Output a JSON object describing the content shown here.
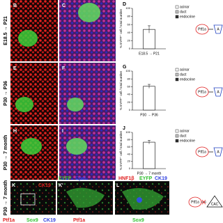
{
  "row_labels": [
    "E18.5 → P21",
    "P30 → P36",
    "P30 → 7 month",
    "P30 → 7 month"
  ],
  "panel_letters": [
    "B",
    "C",
    "E",
    "F",
    "H",
    "I",
    "K",
    "K'",
    "L"
  ],
  "stains_k": [
    "CK19",
    "EYFP",
    "Cpal"
  ],
  "stains_l": [
    "HNF1β",
    "EYFP",
    "CK19"
  ],
  "bottom_labels": [
    "Ptf1a",
    "Sox9",
    "CK19",
    "Ptf1a",
    "Sox9"
  ],
  "schematics": [
    {
      "from": "Ptf1a",
      "to": "A"
    },
    {
      "from": "Ptf1a",
      "to": "A"
    },
    {
      "from": "Ptf1a",
      "to": "A"
    },
    {
      "from": "Ptf1a",
      "to": "CAC"
    }
  ],
  "chart_data": [
    {
      "type": "bar",
      "panel": "D",
      "y_label": "% EYFP⁺ cell / total number",
      "categories": [
        "E18.5 → P21"
      ],
      "ylim": [
        0,
        100
      ],
      "yticks": [
        0,
        20,
        40,
        60,
        80,
        100
      ],
      "series": [
        {
          "name": "acinar",
          "color": "#ffffff",
          "values": [
            48
          ],
          "errors": [
            9
          ]
        },
        {
          "name": "duct",
          "color": "#c8c8c8",
          "values": [
            null
          ]
        },
        {
          "name": "endocrine",
          "color": "#333333",
          "values": [
            null
          ]
        }
      ]
    },
    {
      "type": "bar",
      "panel": "G",
      "y_label": "% EYFP⁺ cell / total number",
      "categories": [
        "P30 → P36"
      ],
      "ylim": [
        0,
        100
      ],
      "yticks": [
        0,
        20,
        40,
        60,
        80,
        100
      ],
      "series": [
        {
          "name": "acinar",
          "color": "#ffffff",
          "values": [
            61
          ],
          "errors": [
            5
          ]
        },
        {
          "name": "duct",
          "color": "#c8c8c8",
          "values": [
            null
          ]
        },
        {
          "name": "endocrine",
          "color": "#333333",
          "values": [
            null
          ]
        }
      ]
    },
    {
      "type": "bar",
      "panel": "J",
      "y_label": "% EYFP⁺ cell / total number",
      "categories": [
        "P30 → 7 month"
      ],
      "ylim": [
        0,
        100
      ],
      "yticks": [
        0,
        20,
        40,
        60,
        80,
        100
      ],
      "series": [
        {
          "name": "acinar",
          "color": "#ffffff",
          "values": [
            73
          ],
          "errors": [
            5
          ]
        },
        {
          "name": "duct",
          "color": "#c8c8c8",
          "values": [
            null
          ]
        },
        {
          "name": "endocrine",
          "color": "#333333",
          "values": [
            null
          ]
        }
      ]
    }
  ]
}
